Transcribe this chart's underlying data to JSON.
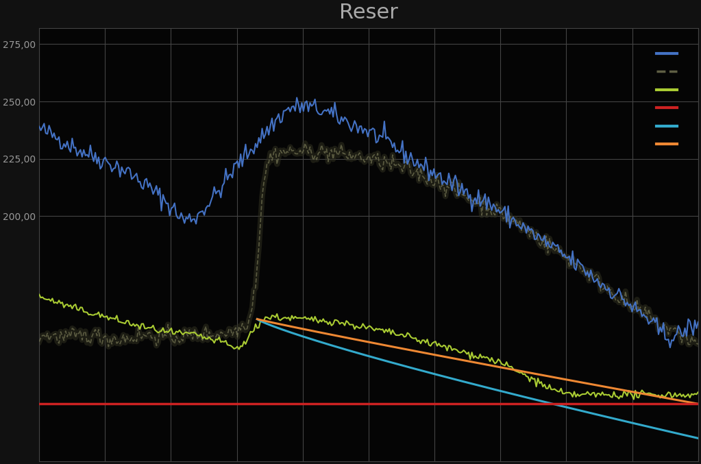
{
  "title": "Reser",
  "title_color": "#aaaaaa",
  "background_color": "#111111",
  "plot_bg_color": "#050505",
  "grid_color": "#444444",
  "text_color": "#999999",
  "ylim": [
    93,
    282
  ],
  "yticks": [
    275.0,
    250.0,
    225.0,
    200.0
  ],
  "n_points": 400,
  "line_blue_color": "#4472c4",
  "line_dark_color": "#777755",
  "line_yellowgreen_color": "#aacc33",
  "line_red_color": "#cc2222",
  "line_cyan_color": "#33aacc",
  "line_orange_color": "#ee8833"
}
